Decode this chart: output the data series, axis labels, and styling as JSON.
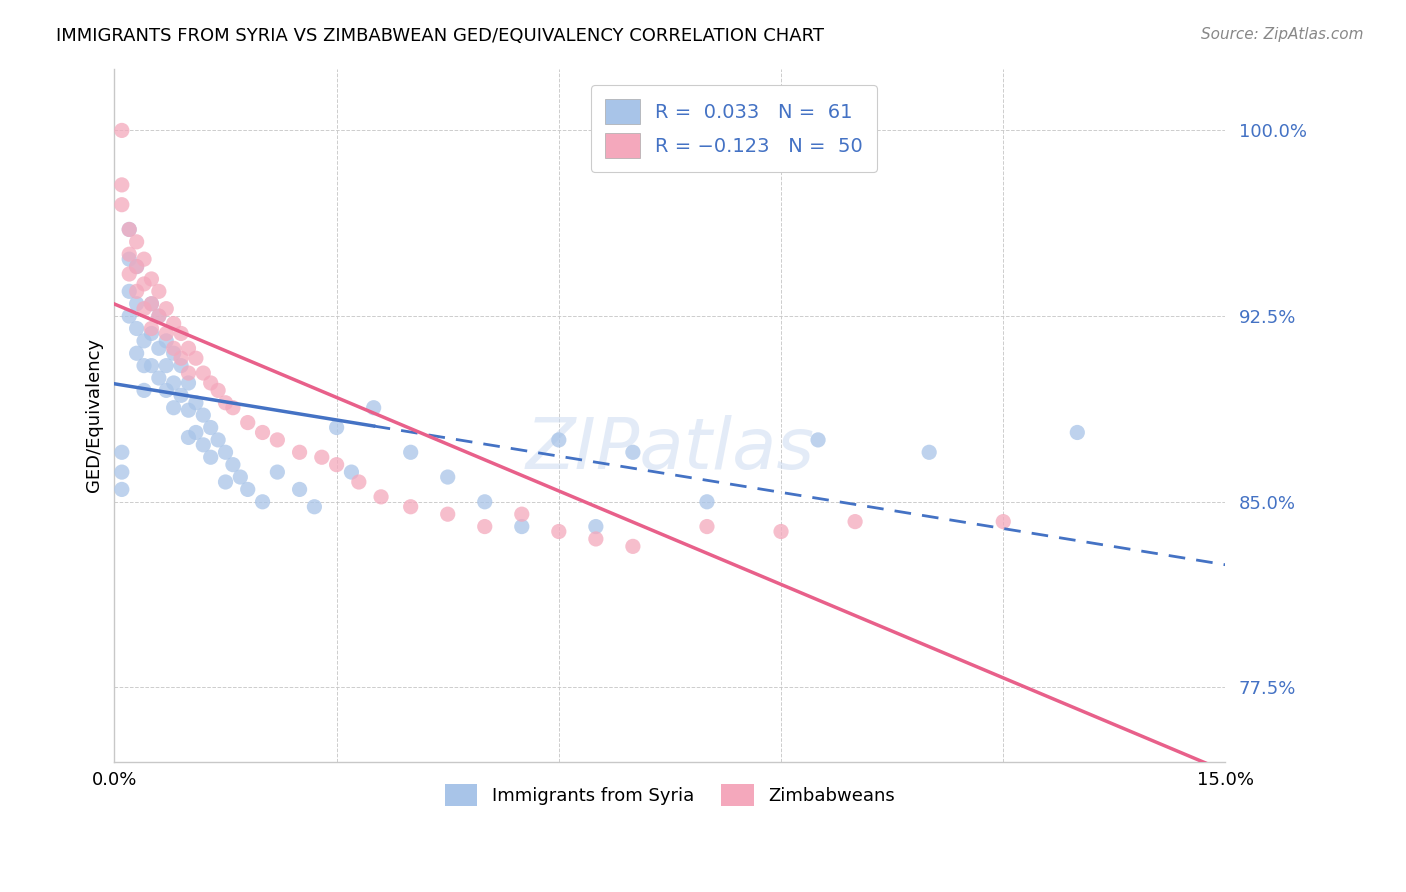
{
  "title": "IMMIGRANTS FROM SYRIA VS ZIMBABWEAN GED/EQUIVALENCY CORRELATION CHART",
  "source": "Source: ZipAtlas.com",
  "legend_syria": "Immigrants from Syria",
  "legend_zim": "Zimbabweans",
  "color_syria": "#a8c4e8",
  "color_zim": "#f4a8bc",
  "color_trend_syria": "#4472c4",
  "color_trend_zim": "#e8608a",
  "color_blue_text": "#4472c4",
  "syria_x": [
    0.001,
    0.001,
    0.001,
    0.002,
    0.002,
    0.002,
    0.002,
    0.003,
    0.003,
    0.003,
    0.003,
    0.004,
    0.004,
    0.004,
    0.005,
    0.005,
    0.005,
    0.006,
    0.006,
    0.006,
    0.007,
    0.007,
    0.007,
    0.008,
    0.008,
    0.008,
    0.009,
    0.009,
    0.01,
    0.01,
    0.01,
    0.011,
    0.011,
    0.012,
    0.012,
    0.013,
    0.013,
    0.014,
    0.015,
    0.015,
    0.016,
    0.017,
    0.018,
    0.02,
    0.022,
    0.025,
    0.027,
    0.03,
    0.032,
    0.035,
    0.04,
    0.045,
    0.05,
    0.055,
    0.06,
    0.065,
    0.07,
    0.08,
    0.095,
    0.11,
    0.13
  ],
  "syria_y": [
    0.87,
    0.862,
    0.855,
    0.96,
    0.948,
    0.935,
    0.925,
    0.945,
    0.93,
    0.92,
    0.91,
    0.915,
    0.905,
    0.895,
    0.93,
    0.918,
    0.905,
    0.925,
    0.912,
    0.9,
    0.915,
    0.905,
    0.895,
    0.91,
    0.898,
    0.888,
    0.905,
    0.893,
    0.898,
    0.887,
    0.876,
    0.89,
    0.878,
    0.885,
    0.873,
    0.88,
    0.868,
    0.875,
    0.87,
    0.858,
    0.865,
    0.86,
    0.855,
    0.85,
    0.862,
    0.855,
    0.848,
    0.88,
    0.862,
    0.888,
    0.87,
    0.86,
    0.85,
    0.84,
    0.875,
    0.84,
    0.87,
    0.85,
    0.875,
    0.87,
    0.878
  ],
  "zim_x": [
    0.001,
    0.001,
    0.001,
    0.002,
    0.002,
    0.002,
    0.003,
    0.003,
    0.003,
    0.004,
    0.004,
    0.004,
    0.005,
    0.005,
    0.005,
    0.006,
    0.006,
    0.007,
    0.007,
    0.008,
    0.008,
    0.009,
    0.009,
    0.01,
    0.01,
    0.011,
    0.012,
    0.013,
    0.014,
    0.015,
    0.016,
    0.018,
    0.02,
    0.022,
    0.025,
    0.028,
    0.03,
    0.033,
    0.036,
    0.04,
    0.045,
    0.05,
    0.055,
    0.06,
    0.065,
    0.07,
    0.08,
    0.09,
    0.1,
    0.12
  ],
  "zim_y": [
    1.0,
    0.978,
    0.97,
    0.96,
    0.95,
    0.942,
    0.955,
    0.945,
    0.935,
    0.948,
    0.938,
    0.928,
    0.94,
    0.93,
    0.92,
    0.935,
    0.925,
    0.928,
    0.918,
    0.922,
    0.912,
    0.918,
    0.908,
    0.912,
    0.902,
    0.908,
    0.902,
    0.898,
    0.895,
    0.89,
    0.888,
    0.882,
    0.878,
    0.875,
    0.87,
    0.868,
    0.865,
    0.858,
    0.852,
    0.848,
    0.845,
    0.84,
    0.845,
    0.838,
    0.835,
    0.832,
    0.84,
    0.838,
    0.842,
    0.842
  ],
  "xmin": 0.0,
  "xmax": 0.15,
  "ymin": 0.745,
  "ymax": 1.025,
  "yticks": [
    0.775,
    0.85,
    0.925,
    1.0
  ],
  "ytick_labels": [
    "77.5%",
    "85.0%",
    "92.5%",
    "100.0%"
  ],
  "xticks": [
    0.0,
    0.03,
    0.06,
    0.09,
    0.12,
    0.15
  ],
  "xtick_labels": [
    "0.0%",
    "",
    "",
    "",
    "",
    "15.0%"
  ],
  "trend_split_x": 0.035
}
